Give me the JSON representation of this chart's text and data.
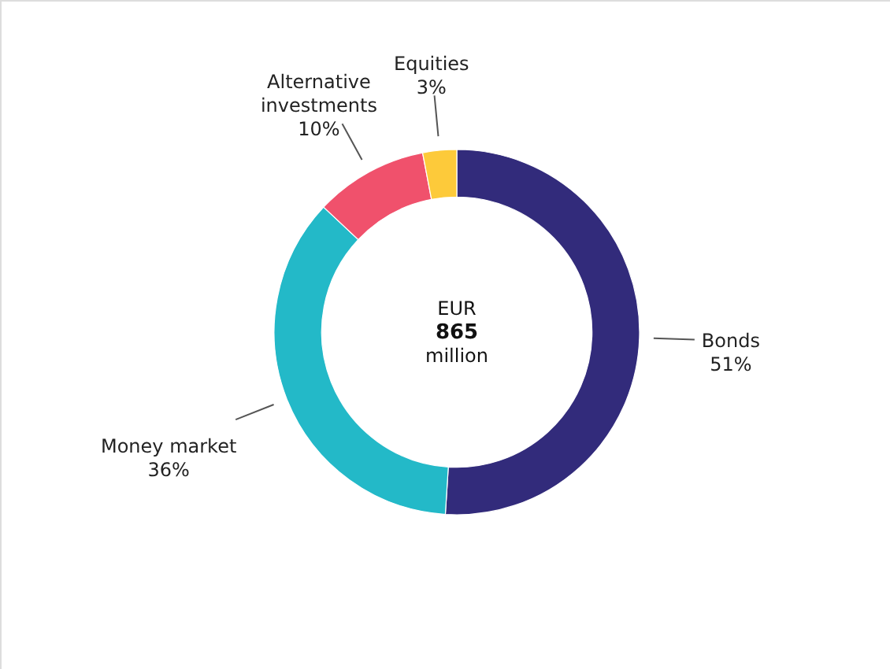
{
  "chart_data": {
    "type": "donut",
    "categories": [
      "Bonds",
      "Money market",
      "Alternative investments",
      "Equities"
    ],
    "values": [
      51,
      36,
      10,
      3
    ],
    "colors": [
      "#322b7b",
      "#23b9c8",
      "#f0516c",
      "#fdca3a"
    ],
    "value_labels": [
      "51%",
      "36%",
      "10%",
      "3%"
    ],
    "annotations": [
      "EUR",
      "865",
      "million"
    ]
  }
}
